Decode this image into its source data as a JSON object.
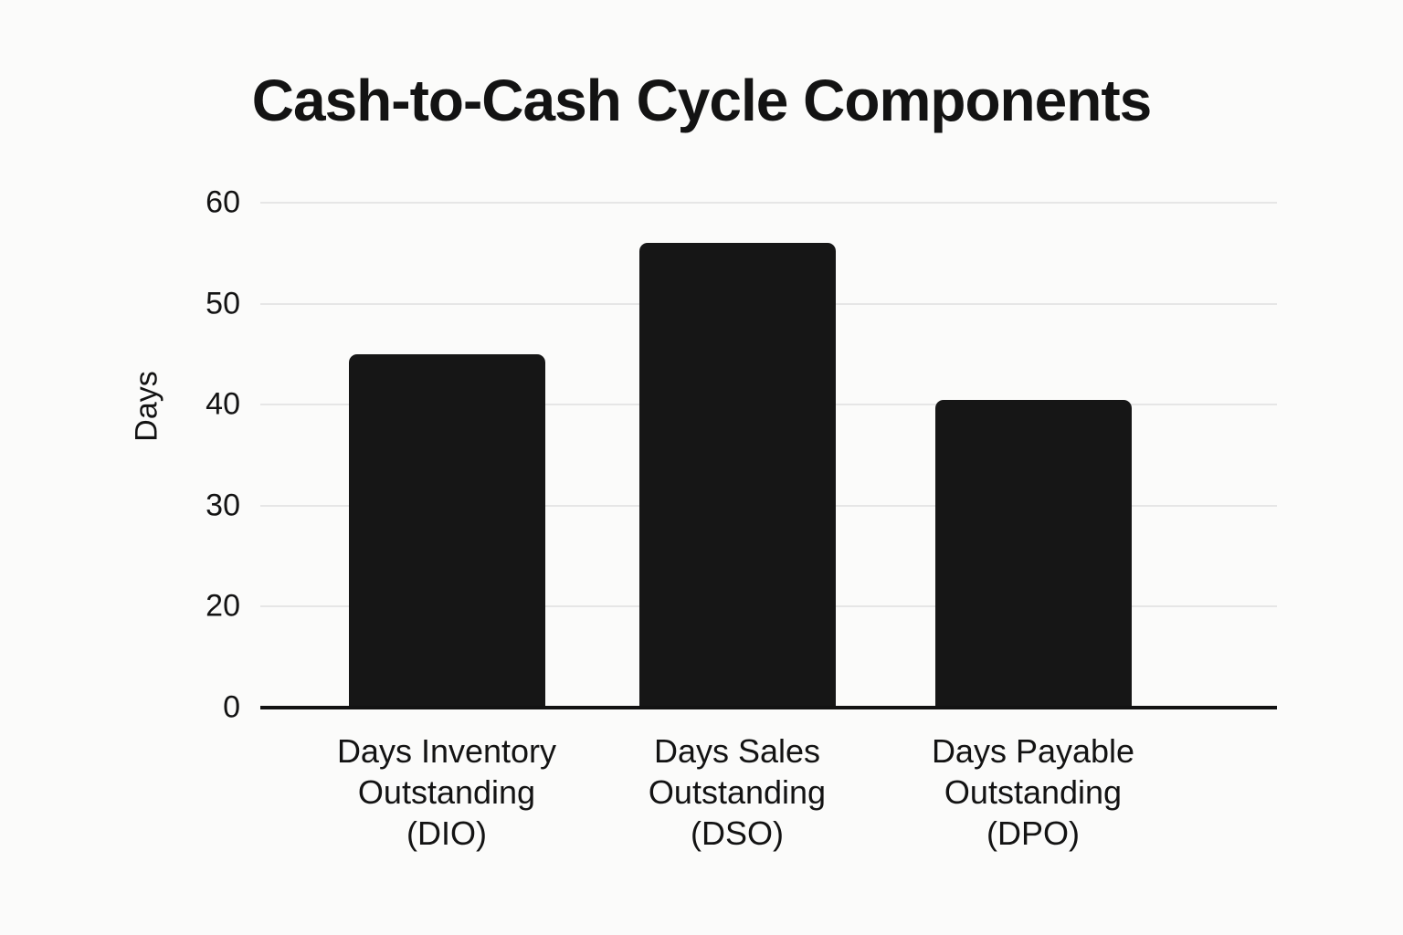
{
  "chart_data": {
    "type": "bar",
    "title": "Cash-to-Cash Cycle Components",
    "ylabel": "Days",
    "xlabel": "",
    "categories": [
      "Days Inventory Outstanding (DIO)",
      "Days Sales Outstanding (DSO)",
      "Days Payable Outstanding (DPO)"
    ],
    "category_lines": [
      [
        "Days Inventory",
        "Outstanding",
        "(DIO)"
      ],
      [
        "Days Sales",
        "Outstanding",
        "(DSO)"
      ],
      [
        "Days Payable",
        "Outstanding",
        "(DPO)"
      ]
    ],
    "values": [
      45,
      56,
      40.5
    ],
    "y_ticks": [
      0,
      20,
      30,
      40,
      50,
      60
    ],
    "y_tick_labels": [
      "0",
      "20",
      "30",
      "40",
      "50",
      "60"
    ],
    "ylim": [
      0,
      60
    ],
    "grid": "horizontal-only",
    "legend": "none",
    "bar_color": "#161616",
    "background_color": "#fbfbfa",
    "gridline_color": "#e6e6e6",
    "axis_color": "#121212",
    "text_color": "#131313"
  }
}
